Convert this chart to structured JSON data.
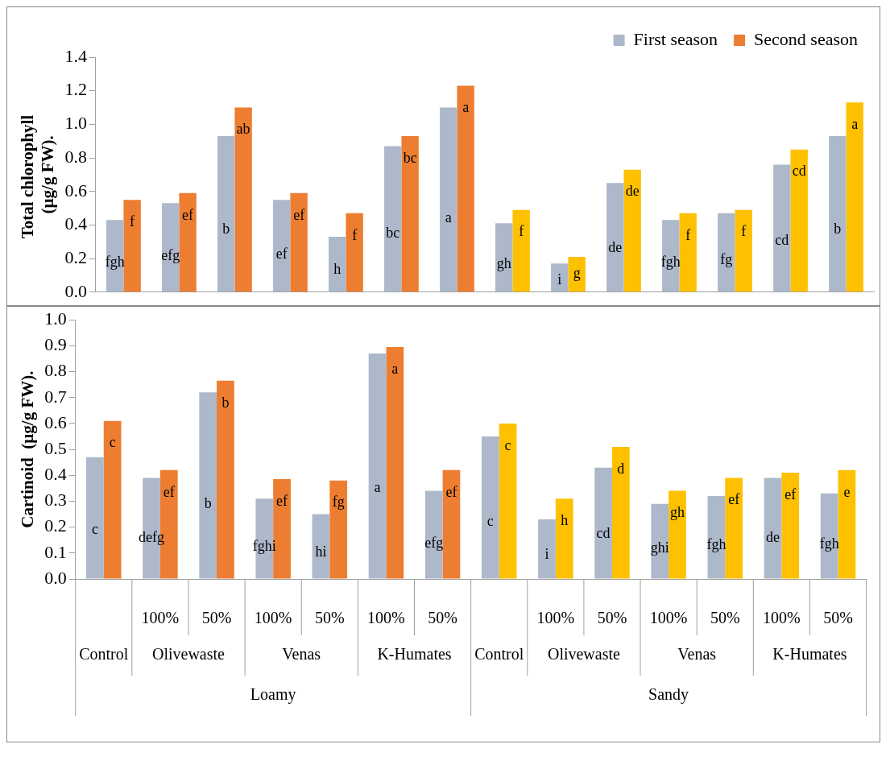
{
  "chart_data": [
    {
      "type": "bar",
      "ylabel": "Total chlorophyll  (µg/g FW).",
      "categories": [
        null,
        null,
        null,
        null,
        null,
        null,
        null,
        null,
        null,
        null,
        null,
        null,
        null,
        null
      ],
      "tick_labels": "y",
      "ylim": [
        0,
        1.4
      ],
      "yticks": [
        {
          "value": 0,
          "label": "0.0"
        },
        {
          "value": 0.2,
          "label": "0.2"
        },
        {
          "value": 0.4,
          "label": "0.4"
        },
        {
          "value": 0.6,
          "label": "0.6"
        },
        {
          "value": 0.8,
          "label": "0.8"
        },
        {
          "value": 1,
          "label": "1.0"
        },
        {
          "value": 1.2,
          "label": "1.2"
        },
        {
          "value": 1.4,
          "label": "1.4"
        }
      ],
      "grid": false,
      "legend": "top right",
      "series": [
        {
          "name": "First season",
          "color": "#adb9ca",
          "values": [
            0.43,
            0.53,
            0.93,
            0.55,
            0.33,
            0.87,
            1.1,
            0.41,
            0.17,
            0.65,
            0.43,
            0.47,
            0.76,
            0.93
          ],
          "value_labels": [
            "fgh",
            "efg",
            "b",
            "ef",
            "h",
            "bc",
            "a",
            "gh",
            "i",
            "de",
            "fgh",
            "fg",
            "cd",
            "b"
          ]
        },
        {
          "name": "Second season",
          "color": "#ed7d31",
          "colors": [
            null,
            null,
            null,
            null,
            null,
            null,
            null,
            "#ffc000",
            "#ffc000",
            "#ffc000",
            "#ffc000",
            "#ffc000",
            "#ffc000",
            "#ffc000"
          ],
          "values": [
            0.55,
            0.59,
            1.1,
            0.59,
            0.47,
            0.93,
            1.23,
            0.49,
            0.21,
            0.73,
            0.47,
            0.49,
            0.85,
            1.13
          ],
          "value_labels": [
            "f",
            "ef",
            "ab",
            "ef",
            "f",
            "bc",
            "a",
            "f",
            "g",
            "de",
            "f",
            "f",
            "cd",
            "a"
          ]
        }
      ]
    },
    {
      "type": "bar",
      "ylabel": "Cartinoid  (µg/g FW).",
      "categories": [
        null,
        "100%",
        "50%",
        "100%",
        "50%",
        "100%",
        "50%",
        null,
        "100%",
        "50%",
        "100%",
        "50%",
        "100%",
        "50%"
      ],
      "ylim": [
        0,
        1
      ],
      "yticks": [
        {
          "value": 0,
          "label": "0.0"
        },
        {
          "value": 0.1,
          "label": "0.1"
        },
        {
          "value": 0.2,
          "label": "0.2"
        },
        {
          "value": 0.3,
          "label": "0.3"
        },
        {
          "value": 0.4,
          "label": "0.4"
        },
        {
          "value": 0.5,
          "label": "0.5"
        },
        {
          "value": 0.6,
          "label": "0.6"
        },
        {
          "value": 0.7,
          "label": "0.7"
        },
        {
          "value": 0.8,
          "label": "0.8"
        },
        {
          "value": 0.9,
          "label": "0.9"
        },
        {
          "value": 1,
          "label": "1.0"
        }
      ],
      "grid": false,
      "legend": false,
      "annotations": [
        "Control",
        "Olivewaste",
        "Venas",
        "K-Humates",
        "Control",
        "Olivewaste",
        "Venas",
        "K-Humates",
        "Loamy",
        "Sandy"
      ],
      "series": [
        {
          "color": "#adb9ca",
          "values": [
            0.47,
            0.39,
            0.72,
            0.31,
            0.25,
            0.87,
            0.34,
            0.55,
            0.23,
            0.43,
            0.29,
            0.32,
            0.39,
            0.33
          ],
          "value_labels": [
            "c",
            "defg",
            "b",
            "fghi",
            "hi",
            "a",
            "efg",
            "c",
            "i",
            "cd",
            "ghi",
            "fgh",
            "de",
            "fgh"
          ]
        },
        {
          "color": "#ed7d31",
          "colors": [
            null,
            null,
            null,
            null,
            null,
            null,
            null,
            "#ffc000",
            "#ffc000",
            "#ffc000",
            "#ffc000",
            "#ffc000",
            "#ffc000",
            "#ffc000"
          ],
          "values": [
            0.61,
            0.42,
            0.765,
            0.385,
            0.38,
            0.895,
            0.42,
            0.6,
            0.31,
            0.51,
            0.34,
            0.39,
            0.41,
            0.42
          ],
          "value_labels": [
            "c",
            "ef",
            "b",
            "ef",
            "fg",
            "a",
            "ef",
            "c",
            "h",
            "d",
            "gh",
            "ef",
            "ef",
            "e"
          ]
        }
      ]
    }
  ]
}
